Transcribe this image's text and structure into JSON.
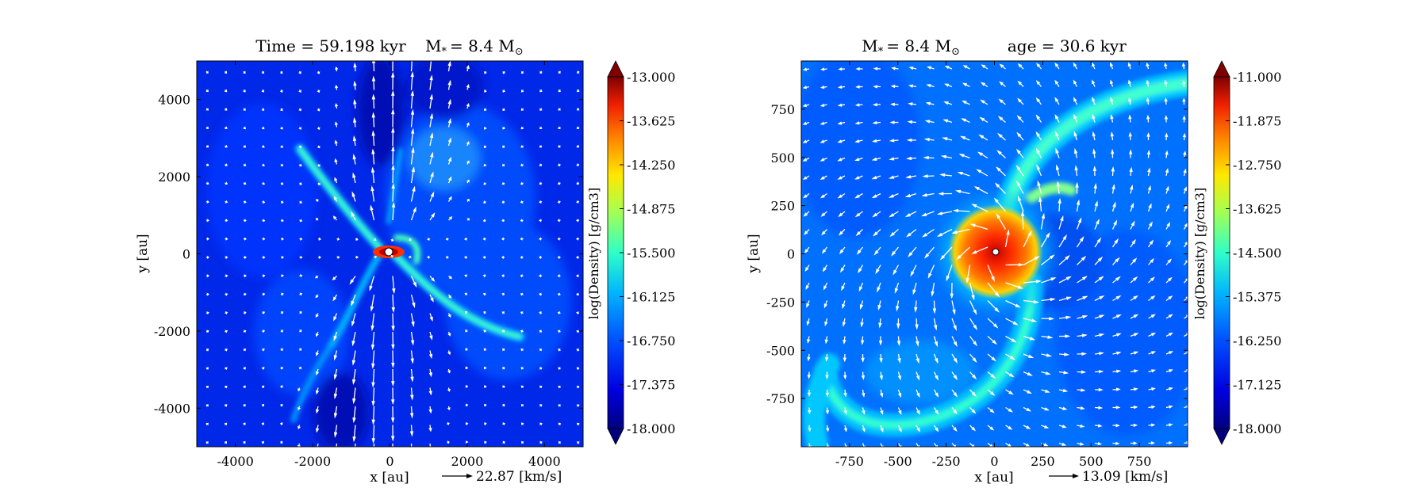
{
  "chart_data": [
    {
      "type": "heatmap",
      "title": {
        "left": "Time = 59.198 kyr",
        "right": "M",
        "star_sub": "*",
        "eq": "= 8.4 M",
        "sun": "⊙"
      },
      "xlabel": "x [au]",
      "ylabel": "y [au]",
      "xlim": [
        -5000,
        5000
      ],
      "ylim": [
        -5000,
        5000
      ],
      "xticks": [
        -4000,
        -2000,
        0,
        2000,
        4000
      ],
      "xtick_labels": [
        "-4000",
        "-2000",
        "0",
        "2000",
        "4000"
      ],
      "yticks": [
        -4000,
        -2000,
        0,
        2000,
        4000
      ],
      "ytick_labels": [
        "-4000",
        "-2000",
        "0",
        "2000",
        "4000"
      ],
      "vector_key": "22.87 [km/s]",
      "colorbar": {
        "label": "log(Density) [g/cm3]",
        "range": [
          -18.0,
          -13.0
        ],
        "ticks": [
          "-13.000",
          "-13.625",
          "-14.250",
          "-14.875",
          "-15.500",
          "-16.125",
          "-16.750",
          "-17.375",
          "-18.000"
        ]
      }
    },
    {
      "type": "heatmap",
      "title": {
        "left": "M",
        "star_sub": "*",
        "eq": "= 8.4 M",
        "sun": "⊙",
        "right": "age = 30.6 kyr"
      },
      "xlabel": "x [au]",
      "ylabel": "y [au]",
      "xlim": [
        -1000,
        1000
      ],
      "ylim": [
        -1000,
        1000
      ],
      "xticks": [
        -750,
        -500,
        -250,
        0,
        250,
        500,
        750
      ],
      "xtick_labels": [
        "-750",
        "-500",
        "-250",
        "0",
        "250",
        "500",
        "750"
      ],
      "yticks": [
        -750,
        -500,
        -250,
        0,
        250,
        500,
        750
      ],
      "ytick_labels": [
        "-750",
        "-500",
        "-250",
        "0",
        "250",
        "500",
        "750"
      ],
      "vector_key": "13.09 [km/s]",
      "colorbar": {
        "label": "log(Density) [g/cm3]",
        "range": [
          -18.0,
          -11.0
        ],
        "ticks": [
          "-11.000",
          "-11.875",
          "-12.750",
          "-13.625",
          "-14.500",
          "-15.375",
          "-16.250",
          "-17.125",
          "-18.000"
        ]
      }
    }
  ],
  "colormap": [
    "#00007f",
    "#0000d6",
    "#0038ff",
    "#0090ff",
    "#00e0ff",
    "#4dffaa",
    "#aaff4d",
    "#ffe800",
    "#ff9000",
    "#ff3000",
    "#c00000",
    "#7f0000"
  ]
}
